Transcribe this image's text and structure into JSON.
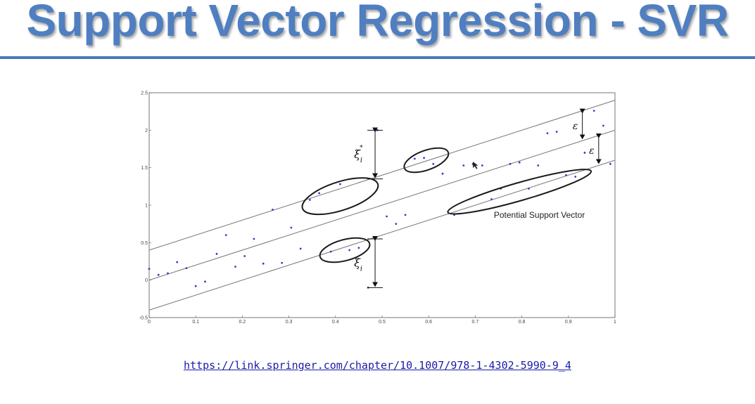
{
  "slide": {
    "title": "Support Vector Regression - SVR",
    "source_url": "https://link.springer.com/chapter/10.1007/978-1-4302-5990-9_4"
  },
  "chart_data": {
    "type": "scatter",
    "xlim": [
      0,
      1
    ],
    "ylim": [
      -0.5,
      2.5
    ],
    "x_ticks": [
      0,
      0.1,
      0.2,
      0.3,
      0.4,
      0.5,
      0.6,
      0.7,
      0.8,
      0.9,
      1
    ],
    "y_ticks": [
      -0.5,
      0,
      0.5,
      1,
      1.5,
      2,
      2.5
    ],
    "grid": false,
    "regression_line": {
      "intercept": 0.0,
      "slope": 2.0
    },
    "epsilon": 0.4,
    "epsilon_label": "ε",
    "points": [
      [
        0.0,
        0.15
      ],
      [
        0.02,
        0.07
      ],
      [
        0.04,
        0.09
      ],
      [
        0.06,
        0.24
      ],
      [
        0.08,
        0.16
      ],
      [
        0.1,
        -0.08
      ],
      [
        0.12,
        -0.02
      ],
      [
        0.145,
        0.35
      ],
      [
        0.165,
        0.6
      ],
      [
        0.185,
        0.18
      ],
      [
        0.205,
        0.32
      ],
      [
        0.225,
        0.55
      ],
      [
        0.245,
        0.22
      ],
      [
        0.265,
        0.94
      ],
      [
        0.285,
        0.23
      ],
      [
        0.305,
        0.7
      ],
      [
        0.325,
        0.42
      ],
      [
        0.345,
        1.07
      ],
      [
        0.365,
        1.16
      ],
      [
        0.39,
        0.38
      ],
      [
        0.41,
        1.28
      ],
      [
        0.43,
        0.4
      ],
      [
        0.45,
        0.43
      ],
      [
        0.47,
        -0.1
      ],
      [
        0.49,
        2.0
      ],
      [
        0.51,
        0.85
      ],
      [
        0.53,
        0.75
      ],
      [
        0.55,
        0.87
      ],
      [
        0.57,
        1.62
      ],
      [
        0.59,
        1.63
      ],
      [
        0.61,
        1.55
      ],
      [
        0.63,
        1.42
      ],
      [
        0.655,
        0.87
      ],
      [
        0.675,
        1.53
      ],
      [
        0.695,
        1.55
      ],
      [
        0.715,
        1.53
      ],
      [
        0.735,
        1.08
      ],
      [
        0.755,
        1.22
      ],
      [
        0.775,
        1.55
      ],
      [
        0.795,
        1.57
      ],
      [
        0.815,
        1.22
      ],
      [
        0.835,
        1.53
      ],
      [
        0.855,
        1.96
      ],
      [
        0.875,
        1.98
      ],
      [
        0.895,
        1.4
      ],
      [
        0.915,
        1.38
      ],
      [
        0.935,
        1.7
      ],
      [
        0.955,
        2.26
      ],
      [
        0.975,
        2.06
      ],
      [
        0.99,
        1.55
      ]
    ],
    "annotations": [
      {
        "label": "Potential Support Vector",
        "x": 0.74,
        "y": 0.83
      }
    ],
    "slack_upper": {
      "label": "ξ",
      "sup": "*",
      "sub": "i",
      "x": 0.485,
      "y_top": 2.0,
      "y_bottom": 1.35
    },
    "slack_lower": {
      "label": "ξ",
      "sub": "i",
      "x": 0.485,
      "y_top": 0.55,
      "y_bottom": -0.1
    },
    "highlighted_regions": [
      {
        "cx": 0.41,
        "cy": 1.12,
        "rx": 0.085,
        "ry": 0.19,
        "angle_deg": -18
      },
      {
        "cx": 0.595,
        "cy": 1.6,
        "rx": 0.05,
        "ry": 0.13,
        "angle_deg": -20
      },
      {
        "cx": 0.42,
        "cy": 0.4,
        "rx": 0.055,
        "ry": 0.14,
        "angle_deg": -15
      },
      {
        "cx": 0.795,
        "cy": 1.18,
        "rx": 0.16,
        "ry": 0.12,
        "angle_deg": -16
      }
    ],
    "colors": {
      "points": "#3b3bc8",
      "lines": "#808080",
      "ellipses": "#1a1a1a"
    }
  }
}
